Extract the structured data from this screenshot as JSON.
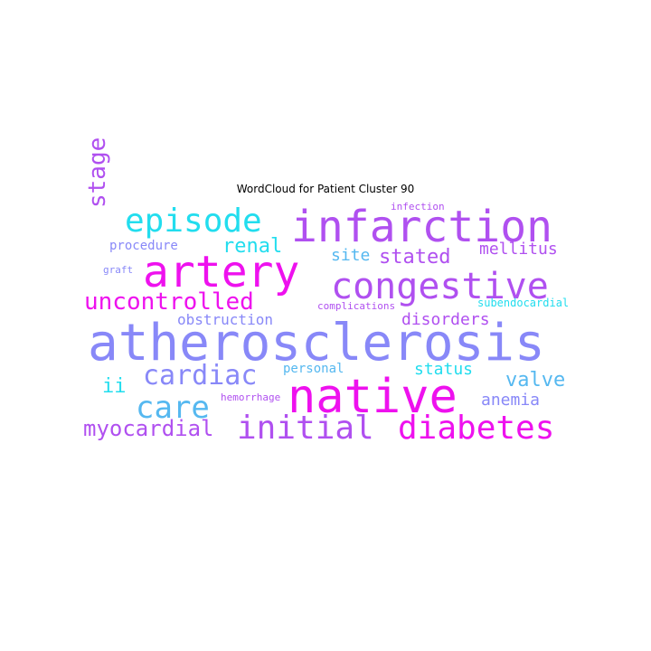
{
  "title": "WordCloud for Patient Cluster 90",
  "colors": {
    "magenta": "#ee11ee",
    "violet": "#b050f0",
    "periwinkle": "#8888f8",
    "cyan": "#22ddee",
    "skyblue": "#55b8f0"
  },
  "words": [
    {
      "text": "atherosclerosis",
      "color": "periwinkle"
    },
    {
      "text": "artery",
      "color": "magenta"
    },
    {
      "text": "native",
      "color": "magenta"
    },
    {
      "text": "infarction",
      "color": "violet"
    },
    {
      "text": "congestive",
      "color": "violet"
    },
    {
      "text": "episode",
      "color": "cyan"
    },
    {
      "text": "initial",
      "color": "violet"
    },
    {
      "text": "diabetes",
      "color": "magenta"
    },
    {
      "text": "cardiac",
      "color": "periwinkle"
    },
    {
      "text": "care",
      "color": "skyblue"
    },
    {
      "text": "uncontrolled",
      "color": "magenta"
    },
    {
      "text": "stage",
      "color": "violet"
    },
    {
      "text": "myocardial",
      "color": "violet"
    },
    {
      "text": "stated",
      "color": "violet"
    },
    {
      "text": "renal",
      "color": "cyan"
    },
    {
      "text": "valve",
      "color": "skyblue"
    },
    {
      "text": "disorders",
      "color": "violet"
    },
    {
      "text": "mellitus",
      "color": "violet"
    },
    {
      "text": "obstruction",
      "color": "periwinkle"
    },
    {
      "text": "status",
      "color": "cyan"
    },
    {
      "text": "anemia",
      "color": "periwinkle"
    },
    {
      "text": "site",
      "color": "skyblue"
    },
    {
      "text": "ii",
      "color": "cyan"
    },
    {
      "text": "procedure",
      "color": "periwinkle"
    },
    {
      "text": "personal",
      "color": "skyblue"
    },
    {
      "text": "infection",
      "color": "violet"
    },
    {
      "text": "subendocardial",
      "color": "cyan"
    },
    {
      "text": "complications",
      "color": "violet"
    },
    {
      "text": "hemorrhage",
      "color": "violet"
    },
    {
      "text": "graft",
      "color": "periwinkle"
    }
  ]
}
